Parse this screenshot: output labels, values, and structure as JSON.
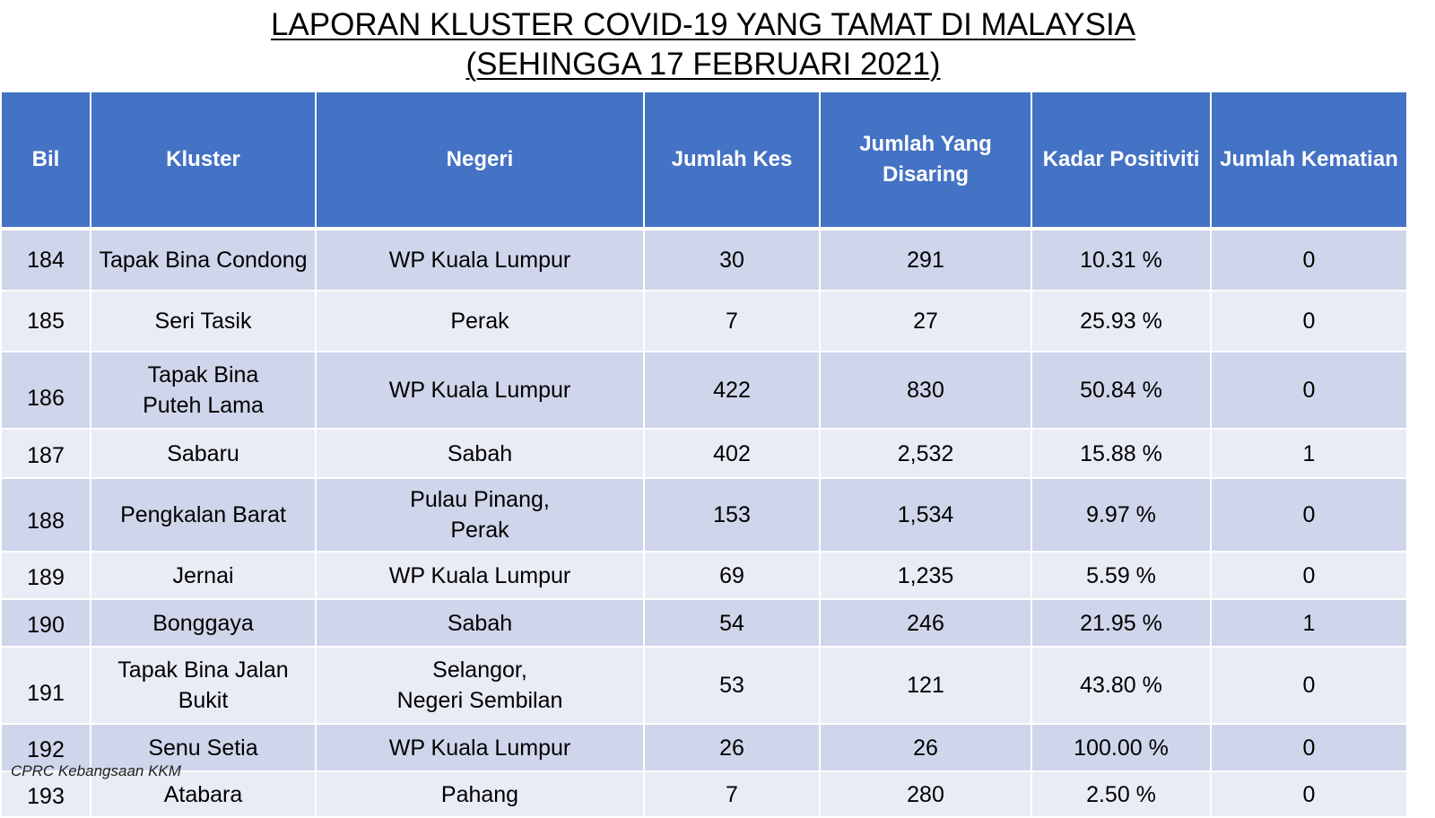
{
  "title": {
    "line1": "LAPORAN KLUSTER COVID-19 YANG TAMAT DI MALAYSIA",
    "line2": "(SEHINGGA  17 FEBRUARI 2021)"
  },
  "table": {
    "headers": [
      "Bil",
      "Kluster",
      "Negeri",
      "Jumlah Kes",
      "Jumlah Yang\nDisaring",
      "Kadar Positiviti",
      "Jumlah Kematian"
    ],
    "rows": [
      {
        "bil": "184",
        "kluster": "Tapak Bina Condong",
        "negeri": "WP Kuala Lumpur",
        "kes": "30",
        "disaring": "291",
        "positiviti": "10.31 %",
        "kematian": "0"
      },
      {
        "bil": "185",
        "kluster": "Seri Tasik",
        "negeri": "Perak",
        "kes": "7",
        "disaring": "27",
        "positiviti": "25.93 %",
        "kematian": "0"
      },
      {
        "bil": "186",
        "kluster": "Tapak Bina\nPuteh Lama",
        "negeri": "WP Kuala Lumpur",
        "kes": "422",
        "disaring": "830",
        "positiviti": "50.84 %",
        "kematian": "0"
      },
      {
        "bil": "187",
        "kluster": "Sabaru",
        "negeri": "Sabah",
        "kes": "402",
        "disaring": "2,532",
        "positiviti": "15.88 %",
        "kematian": "1"
      },
      {
        "bil": "188",
        "kluster": "Pengkalan Barat",
        "negeri": "Pulau Pinang,\nPerak",
        "kes": "153",
        "disaring": "1,534",
        "positiviti": "9.97 %",
        "kematian": "0"
      },
      {
        "bil": "189",
        "kluster": "Jernai",
        "negeri": "WP Kuala Lumpur",
        "kes": "69",
        "disaring": "1,235",
        "positiviti": "5.59 %",
        "kematian": "0"
      },
      {
        "bil": "190",
        "kluster": "Bonggaya",
        "negeri": "Sabah",
        "kes": "54",
        "disaring": "246",
        "positiviti": "21.95 %",
        "kematian": "1"
      },
      {
        "bil": "191",
        "kluster": "Tapak Bina Jalan\nBukit",
        "negeri": "Selangor,\nNegeri Sembilan",
        "kes": "53",
        "disaring": "121",
        "positiviti": "43.80 %",
        "kematian": "0"
      },
      {
        "bil": "192",
        "kluster": "Senu Setia",
        "negeri": "WP Kuala Lumpur",
        "kes": "26",
        "disaring": "26",
        "positiviti": "100.00 %",
        "kematian": "0"
      },
      {
        "bil": "193",
        "kluster": "Atabara",
        "negeri": "Pahang",
        "kes": "7",
        "disaring": "280",
        "positiviti": "2.50 %",
        "kematian": "0"
      }
    ]
  },
  "footer": {
    "source": "CPRC Kebangsaan KKM"
  }
}
